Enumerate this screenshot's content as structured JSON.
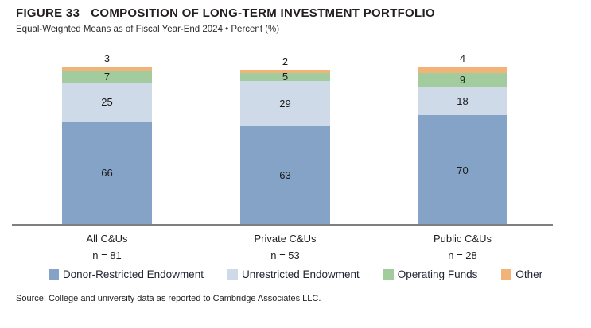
{
  "header": {
    "figure_label": "FIGURE 33",
    "title": "COMPOSITION OF LONG-TERM INVESTMENT PORTFOLIO",
    "subtitle": "Equal-Weighted Means as of Fiscal Year-End 2024 • Percent (%)"
  },
  "chart_data": {
    "type": "bar",
    "stacked": true,
    "orientation": "vertical",
    "title": "Composition of Long-Term Investment Portfolio",
    "ylabel": "Percent (%)",
    "ylim": [
      0,
      101
    ],
    "grid": false,
    "legend_position": "bottom",
    "categories": [
      "All C&Us",
      "Private C&Us",
      "Public C&Us"
    ],
    "category_sublabels": [
      "n = 81",
      "n = 53",
      "n = 28"
    ],
    "series": [
      {
        "name": "Donor-Restricted Endowment",
        "color": "#85a3c7",
        "values": [
          66,
          63,
          70
        ],
        "label_position": "inside"
      },
      {
        "name": "Unrestricted Endowment",
        "color": "#cfdae8",
        "values": [
          25,
          29,
          18
        ],
        "label_position": "inside"
      },
      {
        "name": "Operating Funds",
        "color": "#a2cb9e",
        "values": [
          7,
          5,
          9
        ],
        "label_position": "inside"
      },
      {
        "name": "Other",
        "color": "#f2b379",
        "values": [
          3,
          2,
          4
        ],
        "label_position": "above"
      }
    ]
  },
  "axis": {
    "line_color": "#7f7f7f"
  },
  "source": "Source: College and university data as reported to Cambridge Associates LLC."
}
